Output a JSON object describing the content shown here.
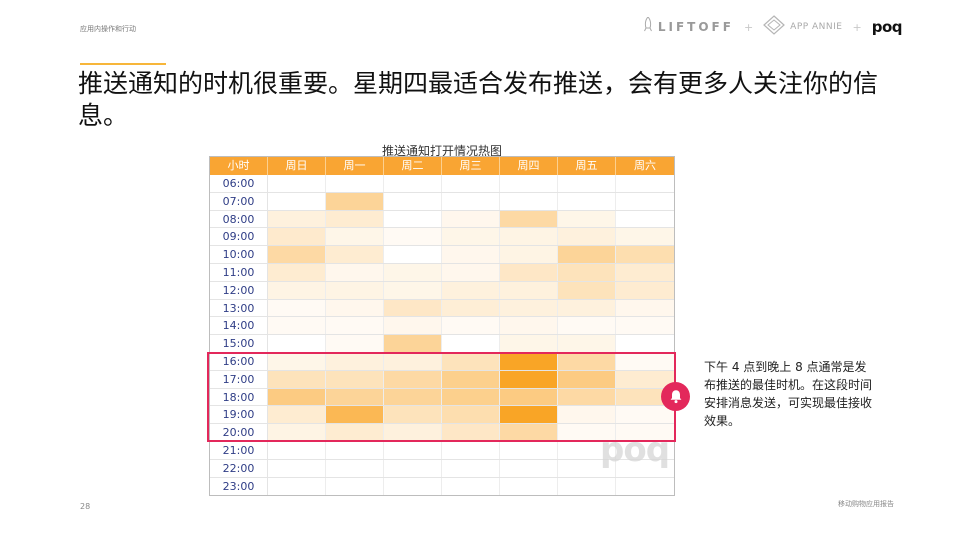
{
  "section_label": "应用内操作和行动",
  "logos": {
    "liftoff": "LIFTOFF",
    "appannie": "APP ANNIE",
    "poq": "poq",
    "plus": "+"
  },
  "headline": "推送通知的时机很重要。星期四最适合发布推送，会有更多人关注你的信息。",
  "chart_data": {
    "type": "heatmap",
    "title": "推送通知打开情况热图",
    "row_header": "小时",
    "columns": [
      "周日",
      "周一",
      "周二",
      "周三",
      "周四",
      "周五",
      "周六"
    ],
    "rows": [
      "06:00",
      "07:00",
      "08:00",
      "09:00",
      "10:00",
      "11:00",
      "12:00",
      "13:00",
      "14:00",
      "15:00",
      "16:00",
      "17:00",
      "18:00",
      "19:00",
      "20:00",
      "21:00",
      "22:00",
      "23:00"
    ],
    "values": [
      [
        0,
        0,
        0,
        0,
        0,
        0,
        0
      ],
      [
        0,
        0.45,
        0,
        0,
        0,
        0,
        0
      ],
      [
        0.15,
        0.2,
        0,
        0.08,
        0.4,
        0.1,
        0
      ],
      [
        0.22,
        0.1,
        0.05,
        0.1,
        0.12,
        0.15,
        0.1
      ],
      [
        0.4,
        0.2,
        0,
        0.08,
        0.12,
        0.45,
        0.35
      ],
      [
        0.2,
        0.08,
        0.1,
        0.08,
        0.25,
        0.3,
        0.2
      ],
      [
        0.12,
        0.12,
        0.1,
        0.15,
        0.15,
        0.3,
        0.2
      ],
      [
        0.05,
        0.08,
        0.25,
        0.18,
        0.15,
        0.15,
        0.08
      ],
      [
        0.05,
        0.05,
        0.08,
        0.05,
        0.08,
        0.05,
        0.05
      ],
      [
        0,
        0.05,
        0.45,
        0,
        0.1,
        0.1,
        0
      ],
      [
        0.1,
        0.15,
        0.15,
        0.3,
        0.95,
        0.4,
        0.05
      ],
      [
        0.3,
        0.3,
        0.4,
        0.5,
        0.95,
        0.55,
        0.2
      ],
      [
        0.55,
        0.45,
        0.45,
        0.5,
        0.55,
        0.4,
        0.3
      ],
      [
        0.2,
        0.75,
        0.3,
        0.35,
        0.95,
        0.08,
        0.05
      ],
      [
        0.12,
        0.2,
        0.15,
        0.25,
        0.4,
        0.05,
        0.05
      ],
      [
        0,
        0,
        0,
        0,
        0,
        0,
        0
      ],
      [
        0,
        0,
        0,
        0,
        0,
        0,
        0
      ],
      [
        0,
        0,
        0,
        0,
        0,
        0,
        0
      ]
    ],
    "highlight_rows": [
      "16:00",
      "20:00"
    ],
    "color_min": "#ffffff",
    "color_max": "#f9a01b"
  },
  "annotation": "下午 4 点到晚上 8 点通常是发布推送的最佳时机。在这段时间安排消息发送，可实现最佳接收效果。",
  "watermark": "poq",
  "page_number": "28",
  "footer_label": "移动购物应用报告",
  "colors": {
    "accent": "#f7b63a",
    "header": "#f9a533",
    "highlight": "#e3285b",
    "hour_text": "#2f3d86"
  }
}
